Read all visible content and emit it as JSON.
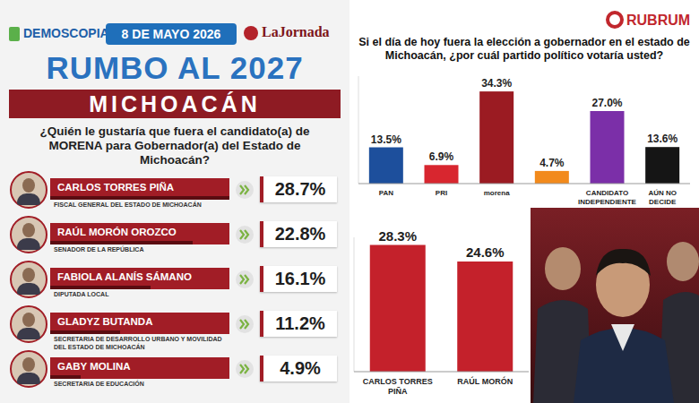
{
  "chart_data": [
    {
      "type": "bar",
      "orientation": "horizontal",
      "logo": "DEMOSCOPIA",
      "date": "8 DE MAYO 2026",
      "publisher": "LaJornada",
      "title": "RUMBO AL 2027",
      "subtitle": "MICHOACÁN",
      "question": "¿Quién le gustaría que fuera el candidato(a) de MORENA para Gobernador(a) del Estado de Michoacán?",
      "categories": [
        "CARLOS TORRES PIÑA",
        "RAÚL MORÓN OROZCO",
        "FABIOLA ALANÍS SÁMANO",
        "GLADYZ BUTANDA",
        "GABY MOLINA"
      ],
      "roles": [
        "FISCAL GENERAL DEL ESTADO DE MICHOACÁN",
        "SENADOR DE LA REPÚBLICA",
        "DIPUTADA LOCAL",
        "SECRETARIA DE DESARROLLO URBANO Y MOVILIDAD DEL ESTADO DE MICHOACÁN",
        "SECRETARIA DE EDUCACIÓN"
      ],
      "values": [
        28.7,
        22.8,
        16.1,
        11.2,
        4.9
      ],
      "value_labels": [
        "28.7%",
        "22.8%",
        "16.1%",
        "11.2%",
        "4.9%"
      ],
      "color": "#a11d26",
      "data_labels": true,
      "tick_labels": false
    },
    {
      "type": "bar",
      "logo": "RUBRUM",
      "title": "Si el día de hoy fuera la elección a gobernador en el estado de Michoacán, ¿por cuál partido político votaría usted?",
      "categories": [
        "PAN",
        "PRI",
        "morena",
        null,
        "CANDIDATO INDEPENDIENTE",
        "AÚN NO DECIDE"
      ],
      "values": [
        13.5,
        6.9,
        34.3,
        4.7,
        27.0,
        13.6
      ],
      "value_labels": [
        "13.5%",
        "6.9%",
        "34.3%",
        "4.7%",
        "27.0%",
        "13.6%"
      ],
      "colors": [
        "#1d4f9c",
        "#d8262f",
        "#9b1b22",
        "#f28a1c",
        "#7b2fa8",
        "#151515"
      ],
      "ylim": [
        0,
        40
      ],
      "data_labels": true,
      "tick_labels": false
    },
    {
      "type": "bar",
      "categories": [
        "CARLOS TORRES PIÑA",
        "RAÚL MORÓN"
      ],
      "values": [
        28.3,
        24.6
      ],
      "value_labels": [
        "28.3%",
        "24.6%"
      ],
      "color": "#c4212b",
      "ylim": [
        0,
        30
      ],
      "data_labels": true,
      "tick_labels": false
    }
  ]
}
